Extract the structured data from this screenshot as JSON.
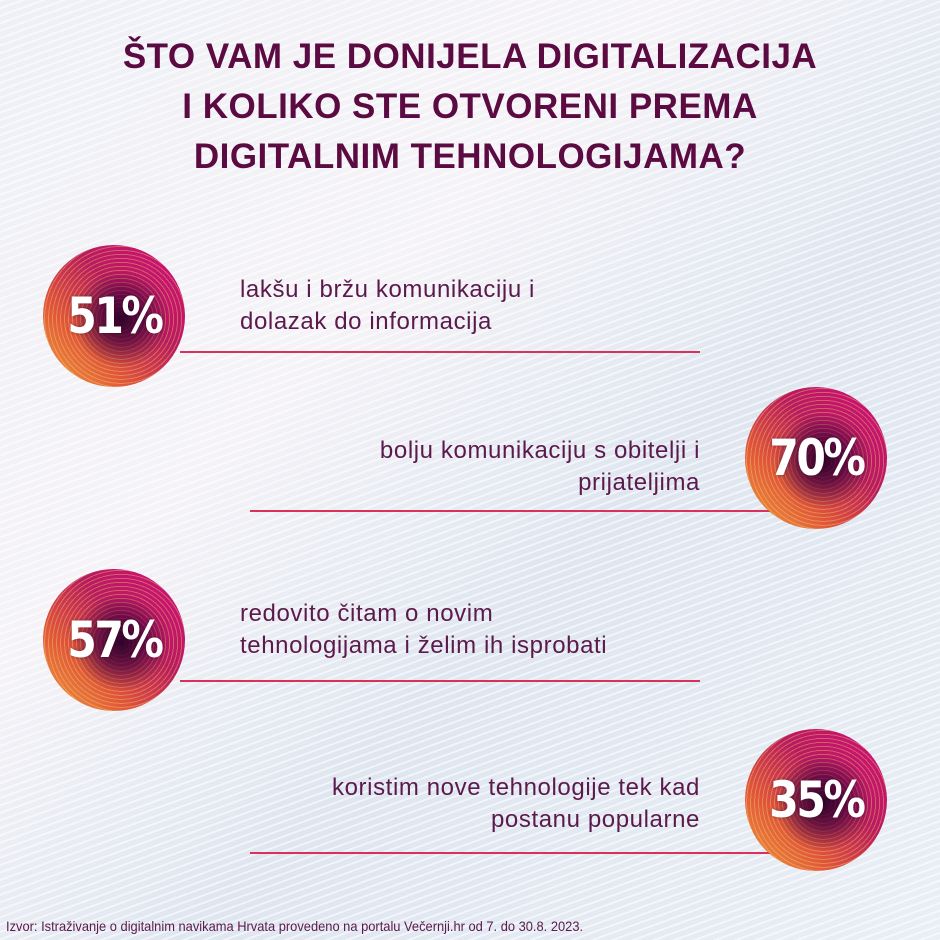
{
  "title": {
    "lines": [
      "ŠTO VAM JE DONIJELA DIGITALIZACIJA",
      "I KOLIKO STE OTVORENI PREMA",
      "DIGITALNIM TEHNOLOGIJAMA?"
    ]
  },
  "items": [
    {
      "percent": "51%",
      "value": 51,
      "lines": [
        "lakšu i bržu komunikaciju i",
        "dolazak do informacija"
      ]
    },
    {
      "percent": "70%",
      "value": 70,
      "lines": [
        "bolju komunikaciju s obitelji i",
        "prijateljima"
      ]
    },
    {
      "percent": "57%",
      "value": 57,
      "lines": [
        "redovito čitam o novim",
        "tehnologijama i želim ih isprobati"
      ]
    },
    {
      "percent": "35%",
      "value": 35,
      "lines": [
        "koristim nove tehnologije tek kad",
        "postanu popularne"
      ]
    }
  ],
  "source": "Izvor: Istraživanje o digitalnim navikama Hrvata provedeno na portalu Večernji.hr od 7. do 30.8. 2023.",
  "colors": {
    "title": "#5b0a42",
    "text": "#5b1a4c",
    "line": "#d8325a",
    "circle_start": "#d0107a",
    "circle_end": "#f0a23c"
  }
}
